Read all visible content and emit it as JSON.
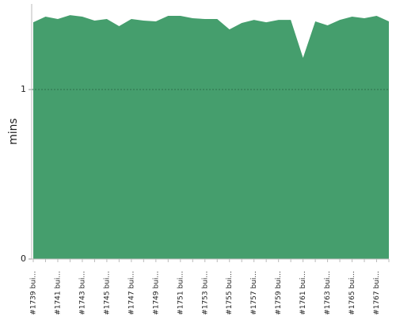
{
  "chart_data": {
    "type": "area",
    "y_label": "mins",
    "color": "#459e6d",
    "categories": [
      "#1739 bui...",
      null,
      "#1741 bui...",
      null,
      "#1743 bui...",
      null,
      "#1745 bui...",
      null,
      "#1747 bui...",
      null,
      "#1749 bui...",
      null,
      "#1751 bui...",
      null,
      "#1753 bui...",
      null,
      "#1755 bui...",
      null,
      "#1757 bui...",
      null,
      "#1759 bui...",
      null,
      "#1761 bui...",
      null,
      "#1763 bui...",
      null,
      "#1765 bui...",
      null,
      "#1767 bui...",
      null
    ],
    "values": [
      1.397,
      1.43,
      1.416,
      1.439,
      1.43,
      1.407,
      1.416,
      1.374,
      1.416,
      1.407,
      1.402,
      1.435,
      1.435,
      1.421,
      1.416,
      1.416,
      1.355,
      1.393,
      1.411,
      1.397,
      1.411,
      1.411,
      1.187,
      1.402,
      1.379,
      1.411,
      1.43,
      1.421,
      1.435,
      1.402
    ],
    "ylim": [
      0,
      1.505
    ],
    "yticks": [
      0,
      1
    ],
    "grid": true
  }
}
